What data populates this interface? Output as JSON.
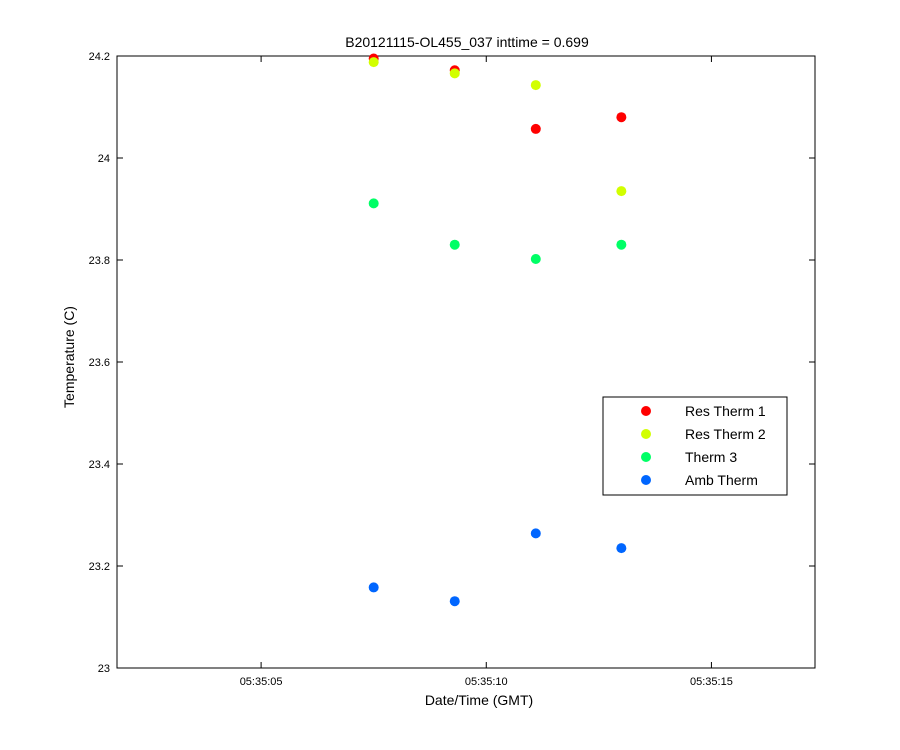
{
  "chart_data": {
    "type": "scatter",
    "title": "B20121115-OL455_037 inttime = 0.699",
    "xlabel": "Date/Time (GMT)",
    "ylabel": "Temperature (C)",
    "x_axis_type": "time",
    "xlim": [
      "05:35:01.8",
      "05:35:17.3"
    ],
    "ylim": [
      23.0,
      24.2
    ],
    "x_ticks": [
      "05:35:05",
      "05:35:10",
      "05:35:15"
    ],
    "y_ticks": [
      "23",
      "23.2",
      "23.4",
      "23.6",
      "23.8",
      "24",
      "24.2"
    ],
    "grid": false,
    "legend_position": "right",
    "x": [
      "05:35:07.5",
      "05:35:09.3",
      "05:35:11.1",
      "05:35:13.0"
    ],
    "series": [
      {
        "name": "Res Therm 1",
        "color": "#ff0000",
        "values": [
          24.195,
          24.172,
          24.057,
          24.08
        ]
      },
      {
        "name": "Res Therm 2",
        "color": "#d2ff00",
        "values": [
          24.188,
          24.166,
          24.143,
          23.935
        ]
      },
      {
        "name": "Therm 3",
        "color": "#00ff66",
        "values": [
          23.911,
          23.83,
          23.802,
          23.83
        ]
      },
      {
        "name": "Amb Therm",
        "color": "#0066ff",
        "values": [
          23.158,
          23.131,
          23.264,
          23.235
        ]
      }
    ]
  }
}
